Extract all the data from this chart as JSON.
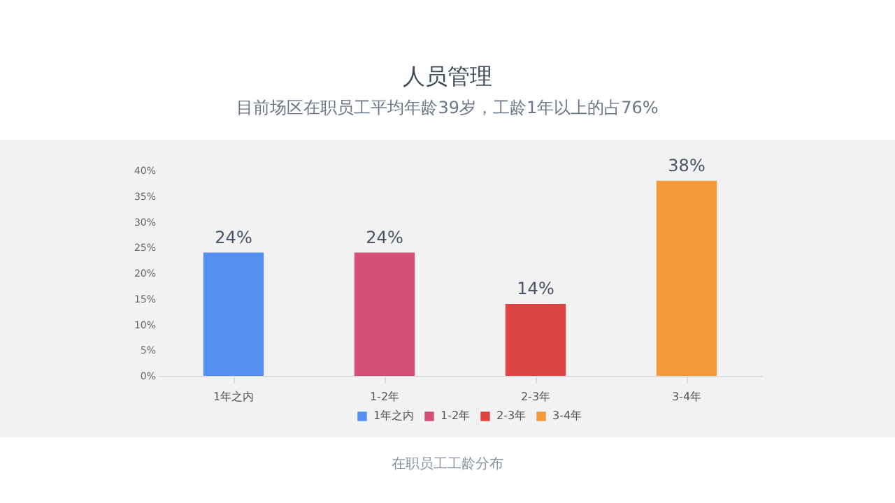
{
  "chart_data": {
    "type": "bar",
    "title": "人员管理",
    "subtitle": "目前场区在职员工平均年龄39岁，工龄1年以上的占76%",
    "categories": [
      "1年之内",
      "1-2年",
      "2-3年",
      "3-4年"
    ],
    "series": [
      {
        "name": "1年之内",
        "color": "#5590f0",
        "values": [
          24,
          null,
          null,
          null
        ],
        "value_labels": [
          "24%",
          null,
          null,
          null
        ]
      },
      {
        "name": "1-2年",
        "color": "#d64f78",
        "values": [
          null,
          24,
          null,
          null
        ],
        "value_labels": [
          null,
          "24%",
          null,
          null
        ]
      },
      {
        "name": "2-3年",
        "color": "#dd4444",
        "values": [
          null,
          null,
          14,
          null
        ],
        "value_labels": [
          null,
          null,
          "14%",
          null
        ]
      },
      {
        "name": "3-4年",
        "color": "#f59a3a",
        "values": [
          null,
          null,
          null,
          38
        ],
        "value_labels": [
          null,
          null,
          null,
          "38%"
        ]
      }
    ],
    "stacked": true,
    "ylim": [
      0,
      40
    ],
    "yticks": [
      {
        "value": 0,
        "label": "0%"
      },
      {
        "value": 5,
        "label": "5%"
      },
      {
        "value": 10,
        "label": "10%"
      },
      {
        "value": 15,
        "label": "15%"
      },
      {
        "value": 20,
        "label": "20%"
      },
      {
        "value": 25,
        "label": "25%"
      },
      {
        "value": 30,
        "label": "30%"
      },
      {
        "value": 35,
        "label": "35%"
      },
      {
        "value": 40,
        "label": "40%"
      }
    ],
    "grid": false,
    "legend": "bottom",
    "annotations": [
      "在职员工工龄分布"
    ]
  }
}
